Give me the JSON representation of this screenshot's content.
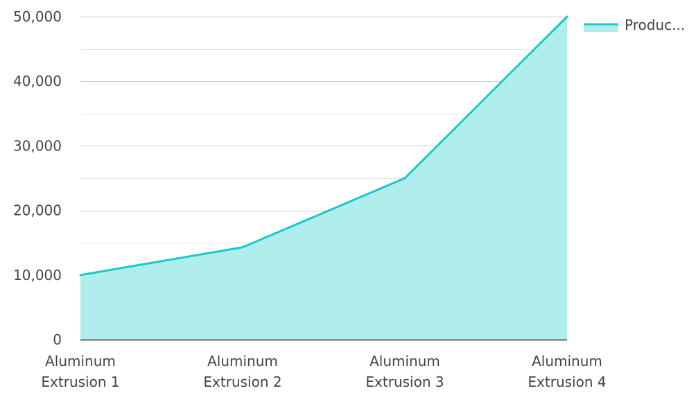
{
  "chart_data": {
    "type": "area",
    "categories": [
      "Aluminum Extrusion 1",
      "Aluminum Extrusion 2",
      "Aluminum Extrusion 3",
      "Aluminum Extrusion 4"
    ],
    "category_lines": [
      [
        "Aluminum",
        "Extrusion 1"
      ],
      [
        "Aluminum",
        "Extrusion 2"
      ],
      [
        "Aluminum",
        "Extrusion 3"
      ],
      [
        "Aluminum",
        "Extrusion 4"
      ]
    ],
    "series": [
      {
        "name": "Produc...",
        "values": [
          10000,
          14300,
          25000,
          50000
        ],
        "line_color": "#1bc8c9",
        "fill_color": "#b0eeed"
      }
    ],
    "y_ticks": [
      "0",
      "10,000",
      "20,000",
      "30,000",
      "40,000",
      "50,000"
    ],
    "ylim": [
      0,
      50000
    ],
    "y_tick_step": 10000,
    "grid": true,
    "legend_position": "top-right",
    "title": "",
    "xlabel": "",
    "ylabel": ""
  }
}
